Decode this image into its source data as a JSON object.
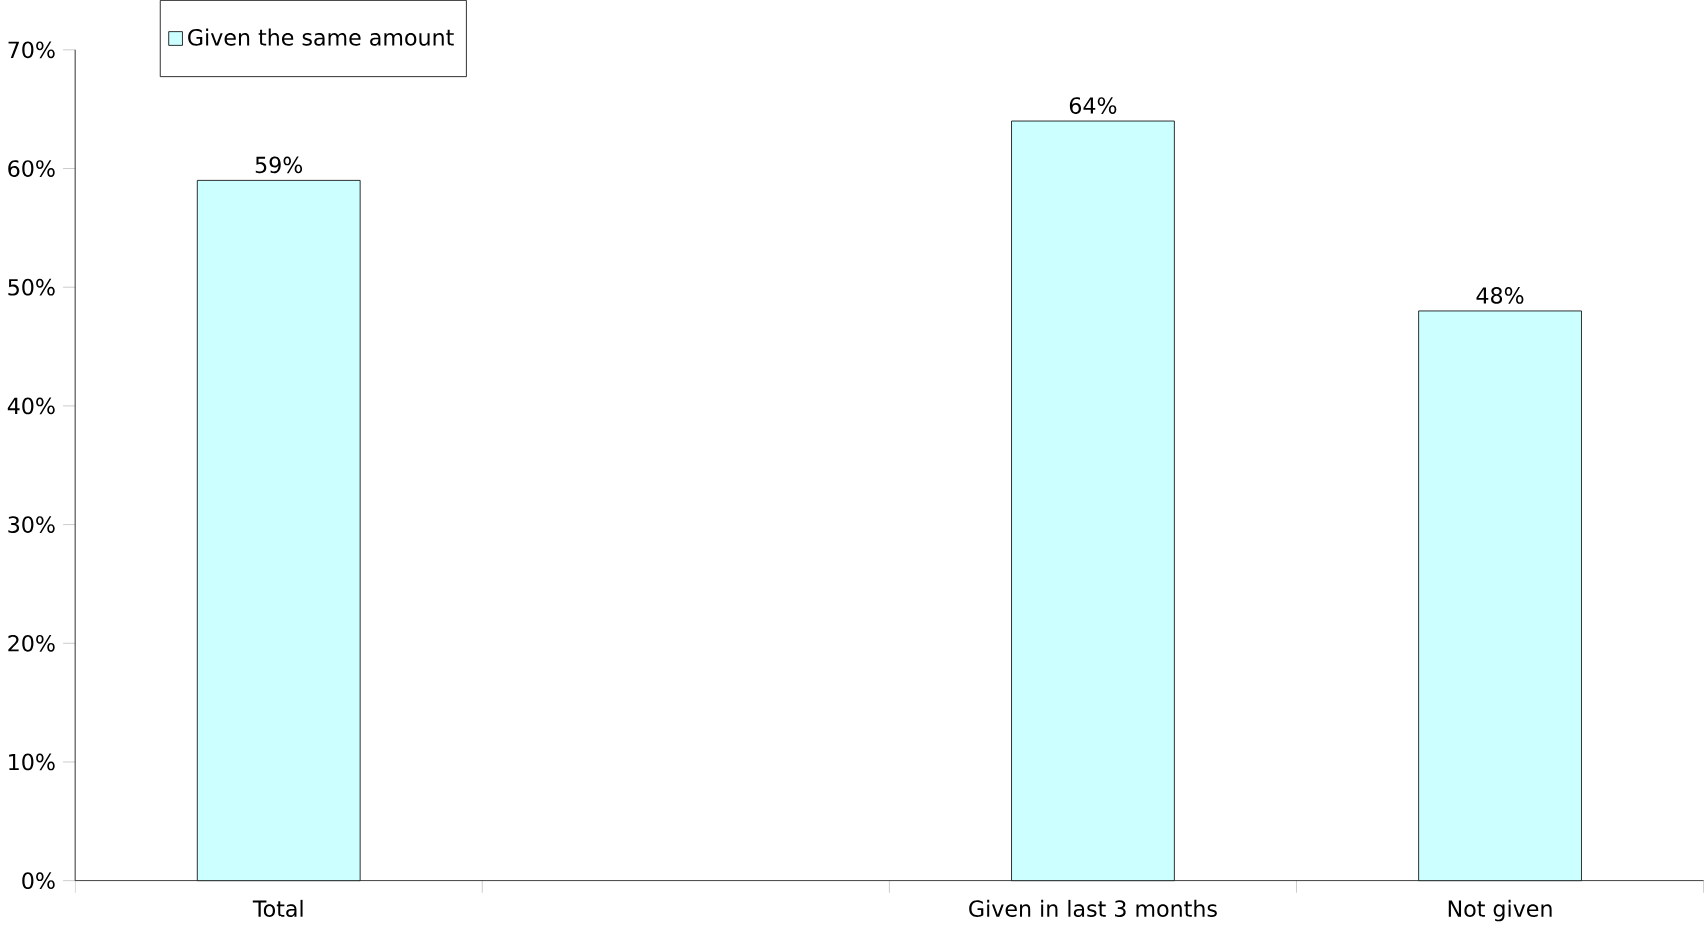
{
  "chart_data": {
    "type": "bar",
    "categories": [
      "Total",
      null,
      "Given in last 3 months",
      "Not given"
    ],
    "series": [
      {
        "name": "Given the same amount",
        "color": "#ccffff",
        "values": [
          59,
          null,
          64,
          48
        ]
      }
    ],
    "value_labels": [
      "59%",
      null,
      "64%",
      "48%"
    ],
    "ylim": [
      0,
      70
    ],
    "yticks": [
      {
        "value": 0,
        "label": "0%"
      },
      {
        "value": 10,
        "label": "10%"
      },
      {
        "value": 20,
        "label": "20%"
      },
      {
        "value": 30,
        "label": "30%"
      },
      {
        "value": 40,
        "label": "40%"
      },
      {
        "value": 50,
        "label": "50%"
      },
      {
        "value": 60,
        "label": "60%"
      },
      {
        "value": 70,
        "label": "70%"
      }
    ],
    "legend": "top left",
    "grid": false
  }
}
